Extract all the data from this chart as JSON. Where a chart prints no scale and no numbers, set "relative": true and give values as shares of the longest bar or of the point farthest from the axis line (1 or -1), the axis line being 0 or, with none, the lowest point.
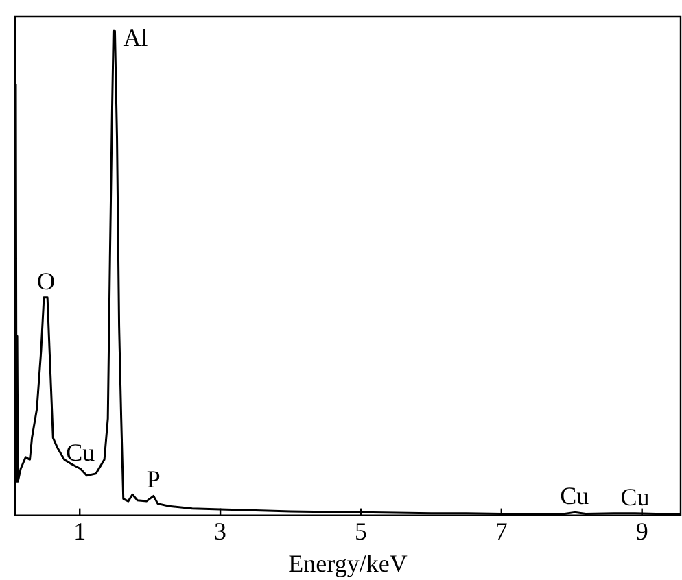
{
  "chart_data": {
    "type": "line",
    "relative": true,
    "xlabel": "Energy/keV",
    "xlim": [
      0.08,
      9.55
    ],
    "xticks": [
      1,
      3,
      5,
      7,
      9
    ],
    "grid": false,
    "legend": false,
    "marker": "none",
    "line_style": "solid",
    "x": [
      0.09,
      0.1,
      0.11,
      0.12,
      0.16,
      0.23,
      0.29,
      0.32,
      0.39,
      0.45,
      0.49,
      0.54,
      0.57,
      0.62,
      0.68,
      0.78,
      0.88,
      1.01,
      1.1,
      1.23,
      1.35,
      1.4,
      1.43,
      1.46,
      1.48,
      1.5,
      1.53,
      1.56,
      1.59,
      1.62,
      1.69,
      1.75,
      1.82,
      1.95,
      2.05,
      2.11,
      2.27,
      2.6,
      3.0,
      3.5,
      4.0,
      4.5,
      5.0,
      5.5,
      6.0,
      6.5,
      7.0,
      7.5,
      7.9,
      8.04,
      8.2,
      8.6,
      8.9,
      9.2,
      9.55
    ],
    "series": [
      {
        "color": "#000000",
        "values": [
          0.89,
          0.07,
          0.37,
          0.07,
          0.096,
          0.12,
          0.115,
          0.16,
          0.22,
          0.34,
          0.45,
          0.45,
          0.34,
          0.16,
          0.14,
          0.115,
          0.106,
          0.096,
          0.082,
          0.086,
          0.115,
          0.2,
          0.53,
          0.83,
          1,
          1,
          0.78,
          0.39,
          0.2,
          0.034,
          0.029,
          0.043,
          0.031,
          0.029,
          0.04,
          0.024,
          0.019,
          0.014,
          0.012,
          0.01,
          0.008,
          0.007,
          0.006,
          0.005,
          0.004,
          0.004,
          0.003,
          0.003,
          0.003,
          0.006,
          0.003,
          0.004,
          0.004,
          0.003,
          0.003
        ]
      }
    ],
    "annotations": [
      {
        "text": "Al",
        "x": 1.5,
        "y": 1
      },
      {
        "text": "O",
        "x": 0.52,
        "y": 0.45
      },
      {
        "text": "Cu",
        "x": 1.01,
        "y": 0.096
      },
      {
        "text": "P",
        "x": 2.05,
        "y": 0.04
      },
      {
        "text": "Cu",
        "x": 8.04,
        "y": 0.006
      },
      {
        "text": "Cu",
        "x": 8.9,
        "y": 0.004
      }
    ]
  }
}
